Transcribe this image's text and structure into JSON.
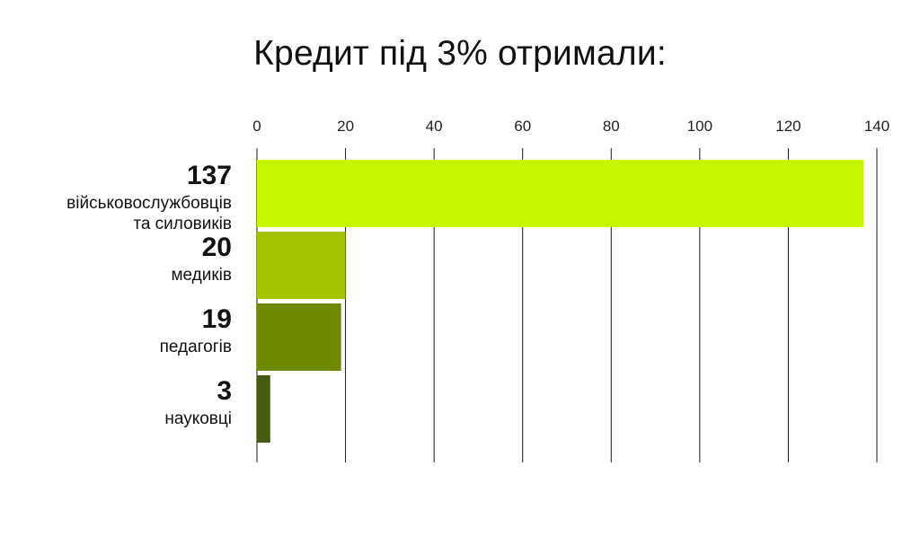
{
  "title": "Кредит під 3% отримали:",
  "chart_data": {
    "type": "bar",
    "orientation": "horizontal",
    "title": "Кредит під 3% отримали:",
    "xlim": [
      0,
      140
    ],
    "x_ticks": [
      "0",
      "20",
      "40",
      "60",
      "80",
      "100",
      "120",
      "140"
    ],
    "grid": "vertical",
    "categories": [
      {
        "value": 137,
        "value_label": "137",
        "label_lines": [
          "військовослужбовців",
          "та силовиків"
        ],
        "color": "#c6f600"
      },
      {
        "value": 20,
        "value_label": "20",
        "label_lines": [
          "медиків"
        ],
        "color": "#a2c500"
      },
      {
        "value": 19,
        "value_label": "19",
        "label_lines": [
          "педагогів"
        ],
        "color": "#6e8b00"
      },
      {
        "value": 3,
        "value_label": "3",
        "label_lines": [
          "науковці"
        ],
        "color": "#455c10"
      }
    ]
  }
}
